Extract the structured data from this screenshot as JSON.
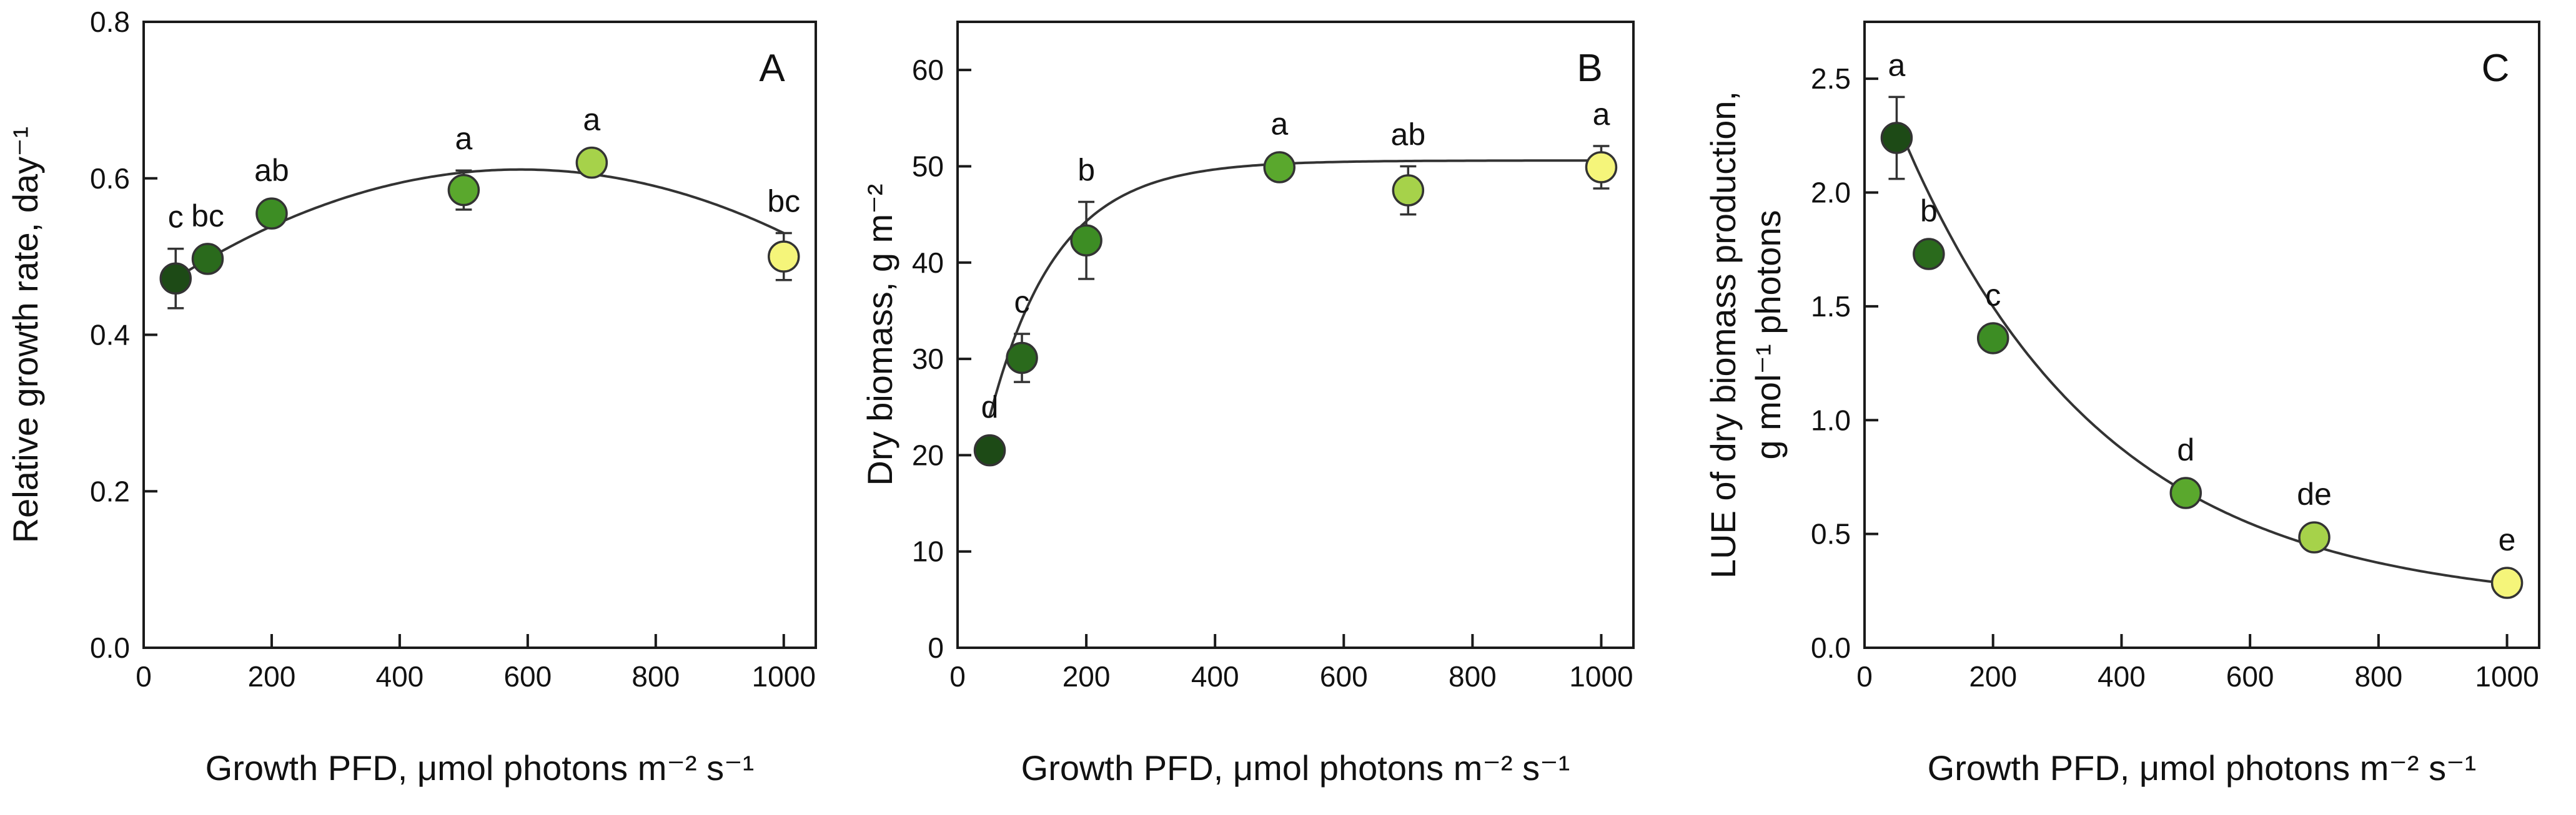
{
  "chart_data": [
    {
      "type": "scatter",
      "panel_label": "A",
      "title": "",
      "xlabel": "Growth PFD, μmol photons m⁻² s⁻¹",
      "ylabel": "Relative growth rate, day⁻¹",
      "xlim": [
        0,
        1050
      ],
      "ylim": [
        0,
        0.8
      ],
      "xticks": [
        0,
        200,
        400,
        600,
        800,
        1000
      ],
      "yticks": [
        0.0,
        0.2,
        0.4,
        0.6,
        0.8
      ],
      "ytick_labels": [
        "0.0",
        "0.2",
        "0.4",
        "0.6",
        "0.8"
      ],
      "points": [
        {
          "x": 50,
          "y": 0.472,
          "err": 0.038,
          "letter": "c",
          "color": "#1d4a16"
        },
        {
          "x": 100,
          "y": 0.497,
          "err": 0.012,
          "letter": "bc",
          "color": "#2a6a1c"
        },
        {
          "x": 200,
          "y": 0.555,
          "err": 0.012,
          "letter": "ab",
          "color": "#3d8d24"
        },
        {
          "x": 500,
          "y": 0.585,
          "err": 0.025,
          "letter": "a",
          "color": "#5aa82d"
        },
        {
          "x": 700,
          "y": 0.62,
          "err": 0.01,
          "letter": "a",
          "color": "#a6d24a"
        },
        {
          "x": 1000,
          "y": 0.5,
          "err": 0.03,
          "letter": "bc",
          "color": "#f5f57a"
        }
      ],
      "fit": {
        "kind": "quadratic",
        "a": 0.445,
        "b": 0.000565,
        "c": -4.8e-07,
        "x_from": 50,
        "x_to": 1000
      }
    },
    {
      "type": "scatter",
      "panel_label": "B",
      "title": "",
      "xlabel": "Growth PFD, μmol photons m⁻² s⁻¹",
      "ylabel": "Dry biomass, g m⁻²",
      "xlim": [
        0,
        1050
      ],
      "ylim": [
        0,
        65
      ],
      "xticks": [
        0,
        200,
        400,
        600,
        800,
        1000
      ],
      "yticks": [
        0,
        10,
        20,
        30,
        40,
        50,
        60
      ],
      "ytick_labels": [
        "0",
        "10",
        "20",
        "30",
        "40",
        "50",
        "60"
      ],
      "points": [
        {
          "x": 50,
          "y": 20.5,
          "err": 0.6,
          "letter": "d",
          "color": "#1d4a16"
        },
        {
          "x": 100,
          "y": 30.1,
          "err": 2.5,
          "letter": "c",
          "color": "#2a6a1c"
        },
        {
          "x": 200,
          "y": 42.3,
          "err": 4.0,
          "letter": "b",
          "color": "#3d8d24"
        },
        {
          "x": 500,
          "y": 49.9,
          "err": 1.2,
          "letter": "a",
          "color": "#5aa82d"
        },
        {
          "x": 700,
          "y": 47.5,
          "err": 2.5,
          "letter": "ab",
          "color": "#a6d24a"
        },
        {
          "x": 1000,
          "y": 49.9,
          "err": 2.2,
          "letter": "a",
          "color": "#f5f57a"
        }
      ],
      "fit": {
        "kind": "saturating",
        "a": 50.6,
        "b": 43.0,
        "k": 0.0096,
        "x_from": 50,
        "x_to": 1000
      }
    },
    {
      "type": "scatter",
      "panel_label": "C",
      "title": "",
      "xlabel": "Growth PFD, μmol photons m⁻² s⁻¹",
      "ylabel": [
        "LUE of dry biomass production,",
        "g mol⁻¹ photons"
      ],
      "xlim": [
        0,
        1050
      ],
      "ylim": [
        0,
        2.75
      ],
      "xticks": [
        0,
        200,
        400,
        600,
        800,
        1000
      ],
      "yticks": [
        0.0,
        0.5,
        1.0,
        1.5,
        2.0,
        2.5
      ],
      "ytick_labels": [
        "0.0",
        "0.5",
        "1.0",
        "1.5",
        "2.0",
        "2.5"
      ],
      "points": [
        {
          "x": 50,
          "y": 2.24,
          "err": 0.18,
          "letter": "a",
          "color": "#1d4a16"
        },
        {
          "x": 100,
          "y": 1.73,
          "err": 0.0,
          "letter": "b",
          "color": "#2a6a1c"
        },
        {
          "x": 200,
          "y": 1.36,
          "err": 0.0,
          "letter": "c",
          "color": "#3d8d24"
        },
        {
          "x": 500,
          "y": 0.68,
          "err": 0.0,
          "letter": "d",
          "color": "#5aa82d"
        },
        {
          "x": 700,
          "y": 0.485,
          "err": 0.0,
          "letter": "de",
          "color": "#a6d24a"
        },
        {
          "x": 1000,
          "y": 0.285,
          "err": 0.0,
          "letter": "e",
          "color": "#f5f57a"
        }
      ],
      "fit": {
        "kind": "decay",
        "a": 0.18,
        "b": 2.5,
        "k": 0.0032,
        "x_from": 50,
        "x_to": 1000
      }
    }
  ]
}
